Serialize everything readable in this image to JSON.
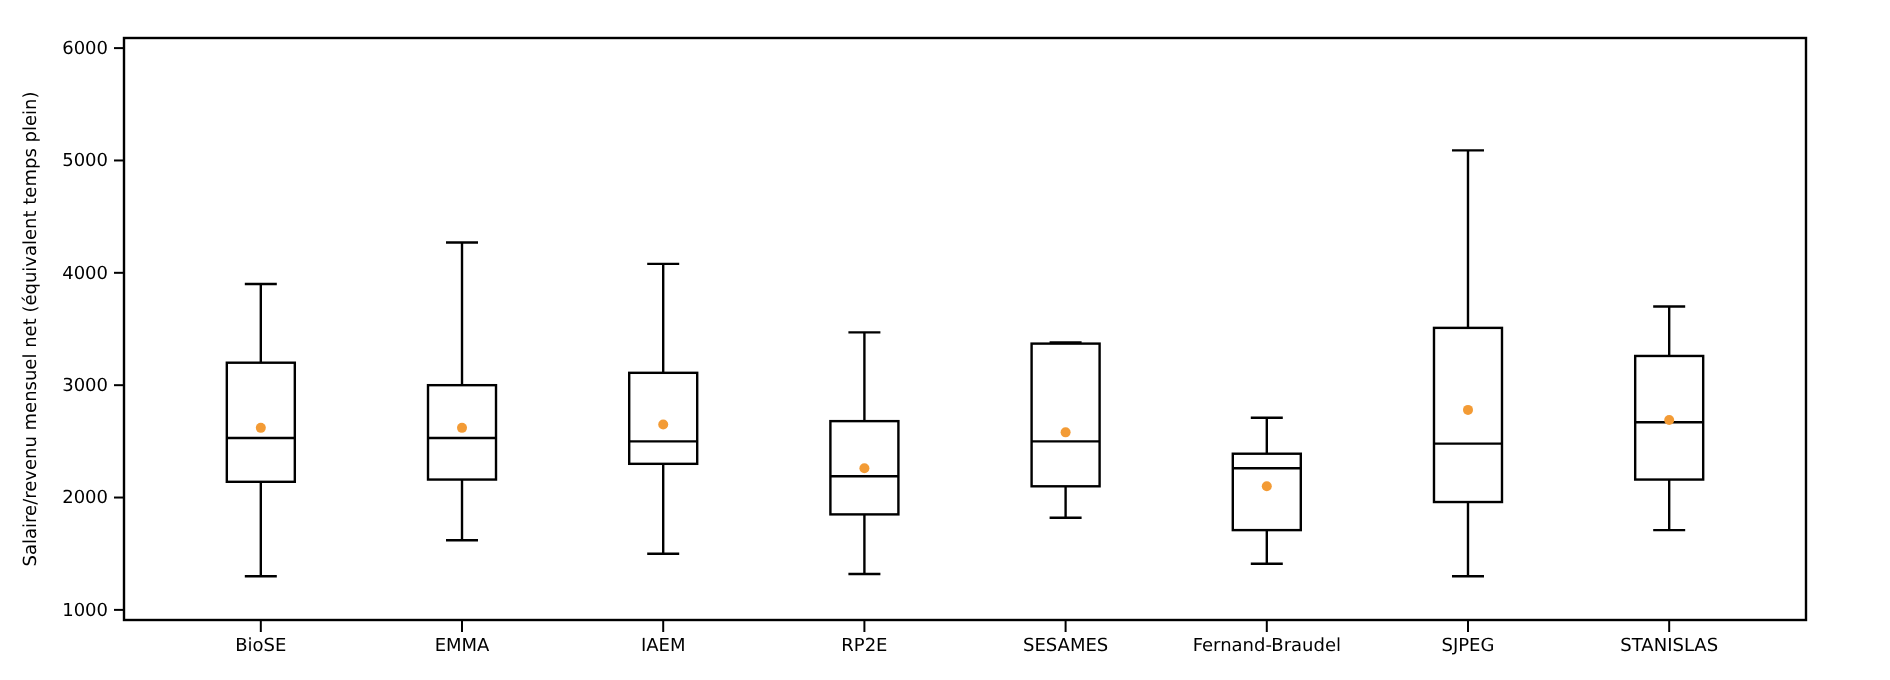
{
  "chart_data": {
    "type": "box",
    "ylabel": "Salaire/revenu mensuel net (équivalent temps plein)",
    "categories": [
      "BioSE",
      "EMMA",
      "IAEM",
      "RP2E",
      "SESAMES",
      "Fernand-Braudel",
      "SJPEG",
      "STANISLAS"
    ],
    "ylim": [
      910,
      6090
    ],
    "yticks": [
      1000,
      2000,
      3000,
      4000,
      5000,
      6000
    ],
    "grid": false,
    "boxes": [
      {
        "low": 1300,
        "q1": 2140,
        "median": 2530,
        "q3": 3200,
        "high": 3900,
        "mean": 2620
      },
      {
        "low": 1620,
        "q1": 2160,
        "median": 2530,
        "q3": 3000,
        "high": 4270,
        "mean": 2620
      },
      {
        "low": 1500,
        "q1": 2300,
        "median": 2500,
        "q3": 3110,
        "high": 4080,
        "mean": 2650
      },
      {
        "low": 1320,
        "q1": 1850,
        "median": 2190,
        "q3": 2680,
        "high": 3470,
        "mean": 2260
      },
      {
        "low": 1820,
        "q1": 2100,
        "median": 2500,
        "q3": 3370,
        "high": 3380,
        "mean": 2580
      },
      {
        "low": 1410,
        "q1": 1710,
        "median": 2260,
        "q3": 2390,
        "high": 2710,
        "mean": 2100
      },
      {
        "low": 1300,
        "q1": 1960,
        "median": 2480,
        "q3": 3510,
        "high": 5090,
        "mean": 2780
      },
      {
        "low": 1710,
        "q1": 2160,
        "median": 2670,
        "q3": 3260,
        "high": 3700,
        "mean": 2690
      }
    ]
  }
}
